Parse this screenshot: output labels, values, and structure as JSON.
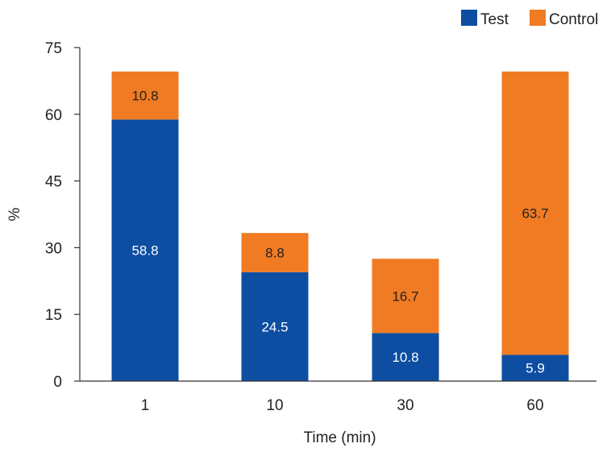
{
  "chart_data": {
    "type": "bar",
    "stacked": true,
    "title": "",
    "xlabel": "Time (min)",
    "ylabel": "%",
    "categories": [
      "1",
      "10",
      "30",
      "60"
    ],
    "ylim": [
      0,
      75
    ],
    "yticks": [
      0,
      15,
      30,
      45,
      60,
      75
    ],
    "yticks_labels": [
      "0",
      "15",
      "30",
      "45",
      "60",
      "75"
    ],
    "grid": false,
    "legend_position": "top-right",
    "series": [
      {
        "name": "Test",
        "color": "#0d4ea3",
        "label_color": "#ffffff",
        "values": [
          58.8,
          24.5,
          10.8,
          5.9
        ],
        "labels": [
          "58.8",
          "24.5",
          "10.8",
          "5.9"
        ]
      },
      {
        "name": "Control",
        "color": "#f07b22",
        "label_color": "#222222",
        "values": [
          10.8,
          8.8,
          16.7,
          63.7
        ],
        "labels": [
          "10.8",
          "8.8",
          "16.7",
          "63.7"
        ]
      }
    ]
  }
}
